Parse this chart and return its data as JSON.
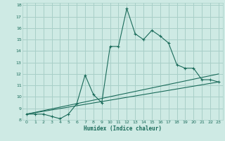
{
  "xlabel": "Humidex (Indice chaleur)",
  "bg_color": "#ceeae4",
  "line_color": "#1a6b5a",
  "grid_color": "#a8cfc8",
  "xlim": [
    -0.5,
    23.5
  ],
  "ylim": [
    8,
    18.2
  ],
  "xticks": [
    0,
    1,
    2,
    3,
    4,
    5,
    6,
    7,
    8,
    9,
    10,
    11,
    12,
    13,
    14,
    15,
    16,
    17,
    18,
    19,
    20,
    21,
    22,
    23
  ],
  "yticks": [
    8,
    9,
    10,
    11,
    12,
    13,
    14,
    15,
    16,
    17,
    18
  ],
  "main_x": [
    0,
    1,
    2,
    3,
    4,
    5,
    6,
    7,
    8,
    9,
    10,
    11,
    12,
    13,
    14,
    15,
    16,
    17,
    18,
    19,
    20,
    21,
    22,
    23
  ],
  "main_y": [
    8.5,
    8.5,
    8.5,
    8.3,
    8.1,
    8.5,
    9.4,
    11.9,
    10.2,
    9.5,
    14.4,
    14.4,
    17.7,
    15.5,
    15.0,
    15.8,
    15.3,
    14.7,
    12.8,
    12.5,
    12.5,
    11.5,
    11.5,
    11.3
  ],
  "trend1_x": [
    0,
    23
  ],
  "trend1_y": [
    8.5,
    11.3
  ],
  "trend2_x": [
    0,
    23
  ],
  "trend2_y": [
    8.5,
    12.0
  ]
}
